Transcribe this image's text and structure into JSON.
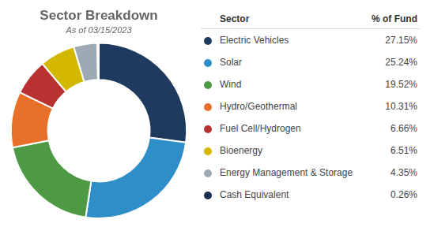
{
  "chart_data": {
    "type": "doughnut",
    "title": "Sector Breakdown",
    "subtitle": "As of 03/15/2023",
    "categories": [
      "Electric Vehicles",
      "Solar",
      "Wind",
      "Hydro/Geothermal",
      "Fuel Cell/Hydrogen",
      "Bioenergy",
      "Energy Management & Storage",
      "Cash Equivalent"
    ],
    "values": [
      27.15,
      25.24,
      19.52,
      10.31,
      6.66,
      6.51,
      4.35,
      0.26
    ],
    "value_labels": [
      "27.15%",
      "25.24%",
      "19.52%",
      "10.31%",
      "6.66%",
      "6.51%",
      "4.35%",
      "0.26%"
    ],
    "colors": [
      "#1e3a5f",
      "#2e8ec8",
      "#4e9a44",
      "#e8702a",
      "#b83232",
      "#d4b800",
      "#9daab5",
      "#1a2e50"
    ],
    "annotations": [
      "Sector",
      "% of Fund"
    ]
  }
}
